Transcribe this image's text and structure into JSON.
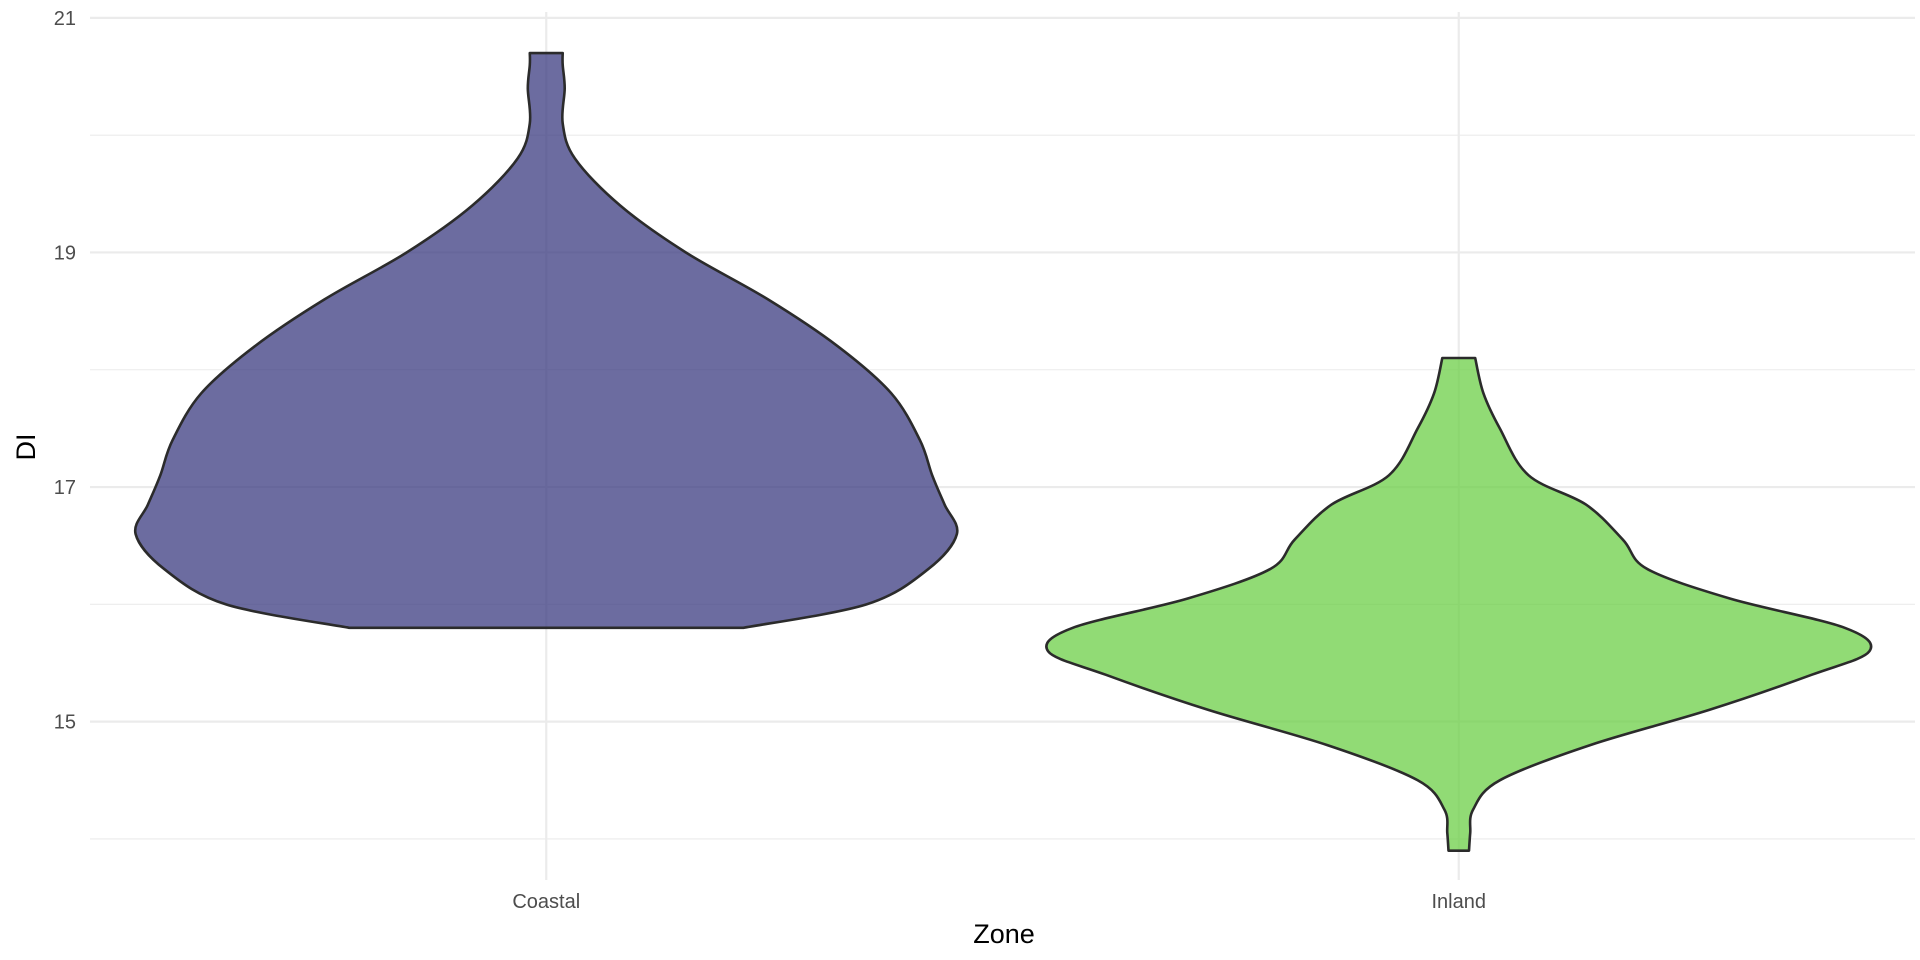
{
  "chart_data": {
    "type": "violin",
    "xlabel": "Zone",
    "ylabel": "DI",
    "ylim": [
      13.65,
      21.05
    ],
    "y_ticks": [
      15,
      17,
      19,
      21
    ],
    "y_minor_ticks": [
      14,
      16,
      18,
      20
    ],
    "grid": true,
    "categories": [
      "Coastal",
      "Inland"
    ],
    "series": [
      {
        "category": "Coastal",
        "color": "#3b3b80",
        "min": 15.8,
        "max": 20.7,
        "density_profile": [
          [
            15.8,
            0.48
          ],
          [
            16.0,
            0.78
          ],
          [
            16.3,
            0.93
          ],
          [
            16.6,
            1.0
          ],
          [
            16.85,
            0.97
          ],
          [
            17.1,
            0.94
          ],
          [
            17.4,
            0.91
          ],
          [
            17.8,
            0.84
          ],
          [
            18.2,
            0.71
          ],
          [
            18.6,
            0.54
          ],
          [
            19.0,
            0.34
          ],
          [
            19.4,
            0.18
          ],
          [
            19.8,
            0.07
          ],
          [
            20.1,
            0.04
          ],
          [
            20.4,
            0.045
          ],
          [
            20.6,
            0.04
          ],
          [
            20.7,
            0.04
          ]
        ]
      },
      {
        "category": "Inland",
        "color": "#6ccf47",
        "min": 13.9,
        "max": 18.1,
        "density_profile": [
          [
            13.9,
            0.025
          ],
          [
            14.05,
            0.028
          ],
          [
            14.25,
            0.035
          ],
          [
            14.5,
            0.1
          ],
          [
            14.8,
            0.32
          ],
          [
            15.1,
            0.61
          ],
          [
            15.4,
            0.86
          ],
          [
            15.6,
            1.0
          ],
          [
            15.8,
            0.94
          ],
          [
            16.05,
            0.66
          ],
          [
            16.3,
            0.46
          ],
          [
            16.55,
            0.4
          ],
          [
            16.85,
            0.31
          ],
          [
            17.1,
            0.17
          ],
          [
            17.5,
            0.1
          ],
          [
            17.8,
            0.06
          ],
          [
            18.1,
            0.04
          ]
        ]
      }
    ]
  }
}
